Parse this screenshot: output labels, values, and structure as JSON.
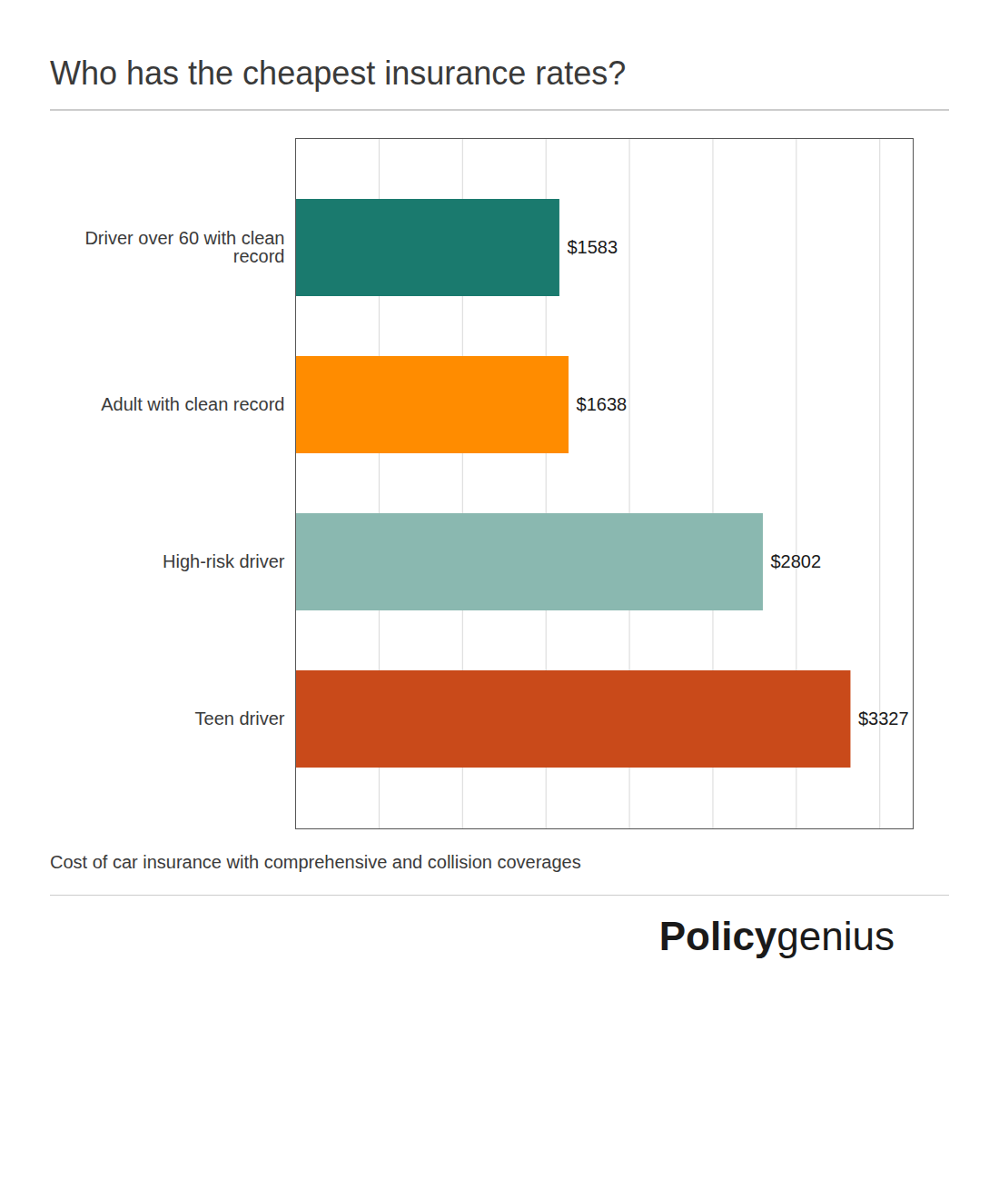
{
  "chart_data": {
    "type": "bar",
    "orientation": "horizontal",
    "title": "Who has the cheapest insurance rates?",
    "subtitle": "Cost of car insurance with comprehensive and collision coverages",
    "categories": [
      "Driver over 60 with clean\nrecord",
      "Adult with clean record",
      "High-risk driver",
      "Teen driver"
    ],
    "values": [
      1583,
      1638,
      2802,
      3327
    ],
    "value_labels": [
      "$1583",
      "$1638",
      "$2802",
      "$3327"
    ],
    "colors": [
      "#1a7a6e",
      "#ff8c00",
      "#8ab8b0",
      "#c94a1a"
    ],
    "xlim": [
      0,
      3700
    ],
    "xticks": [
      500,
      1000,
      1500,
      2000,
      2500,
      3000,
      3500
    ],
    "grid": true,
    "data_labels": true,
    "tick_labels": "y",
    "annotations": [
      "Policy",
      "genius"
    ]
  }
}
